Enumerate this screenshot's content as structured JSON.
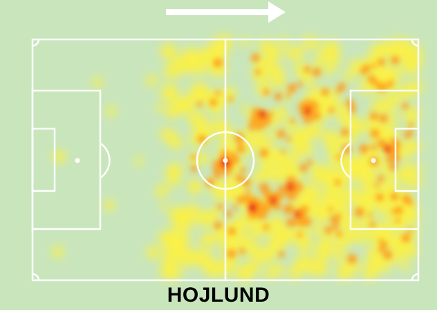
{
  "player": {
    "name": "HOJLUND"
  },
  "attack_direction": "left-to-right",
  "colors": {
    "background": "#c9e5bc",
    "pitch_lines": "#ffffff",
    "arrow": "#ffffff",
    "name_text": "#000000",
    "heat_low": "#fff23a",
    "heat_mid": "#ff9a16",
    "heat_high": "#e8170e"
  },
  "icons": {
    "direction_arrow": "right-arrow-icon"
  }
}
